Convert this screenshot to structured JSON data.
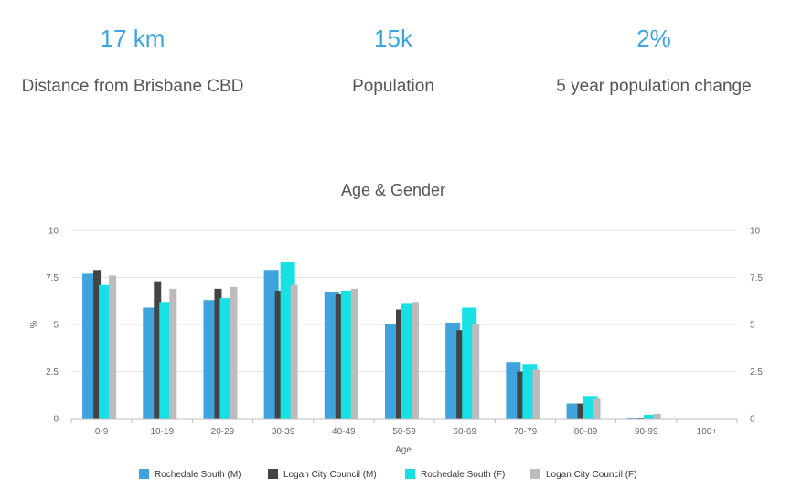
{
  "stats": [
    {
      "value": "17 km",
      "label": "Distance from Brisbane CBD"
    },
    {
      "value": "15k",
      "label": "Population"
    },
    {
      "value": "2%",
      "label": "5 year population change"
    }
  ],
  "colors": {
    "stat_value": "#3aa6e0",
    "series": [
      "#3fa4dd",
      "#444444",
      "#18e1e6",
      "#bdbbbb"
    ],
    "grid": "#e4e4e4",
    "axis": "#bbbbbb"
  },
  "chart_data": {
    "type": "bar",
    "title": "Age & Gender",
    "xlabel": "Age",
    "ylabel": "%",
    "ylim": [
      0,
      10
    ],
    "yticks": [
      0,
      2.5,
      5,
      7.5,
      10
    ],
    "ytick_labels": [
      "0",
      "2.5",
      "5",
      "7.5",
      "10"
    ],
    "grid": true,
    "legend_position": "bottom",
    "categories": [
      "0-9",
      "10-19",
      "20-29",
      "30-39",
      "40-49",
      "50-59",
      "60-69",
      "70-79",
      "80-89",
      "90-99",
      "100+"
    ],
    "series": [
      {
        "name": "Rochedale South (M)",
        "values": [
          7.7,
          5.9,
          6.3,
          7.9,
          6.7,
          5.0,
          5.1,
          3.0,
          0.8,
          0.05,
          0
        ]
      },
      {
        "name": "Logan City Council (M)",
        "values": [
          7.9,
          7.3,
          6.9,
          6.8,
          6.6,
          5.8,
          4.7,
          2.5,
          0.8,
          0.05,
          0
        ]
      },
      {
        "name": "Rochedale South (F)",
        "values": [
          7.1,
          6.2,
          6.4,
          8.3,
          6.8,
          6.1,
          5.9,
          2.9,
          1.2,
          0.2,
          0
        ]
      },
      {
        "name": "Logan City Council (F)",
        "values": [
          7.6,
          6.9,
          7.0,
          7.1,
          6.9,
          6.2,
          5.0,
          2.6,
          1.1,
          0.25,
          0
        ]
      }
    ]
  }
}
